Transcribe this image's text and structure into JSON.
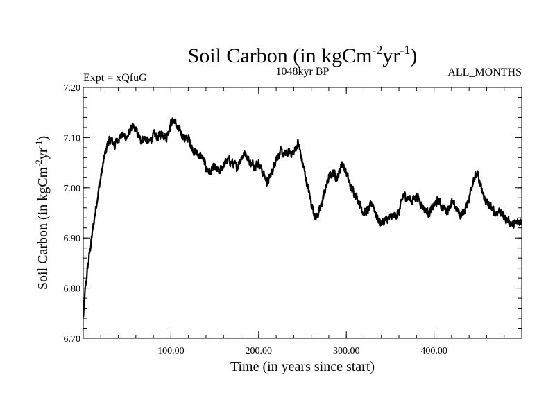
{
  "chart_data": {
    "type": "line",
    "title": {
      "main": "Soil Carbon (in kgCm",
      "exp1": "-2",
      "mid": "yr",
      "exp2": "-1",
      "end": ")"
    },
    "subtitle_left": "Expt = xQfuG",
    "subtitle_center": "1048kyr BP",
    "subtitle_right": "ALL_MONTHS",
    "xlabel": "Time (in years since start)",
    "ylabel": {
      "main": "Soil Carbon (in kgCm",
      "exp1": "-2",
      "mid": "yr",
      "exp2": "-1",
      "end": ")"
    },
    "xlim": [
      0,
      500
    ],
    "ylim": [
      6.7,
      7.2
    ],
    "x_major_ticks": [
      100,
      200,
      300,
      400
    ],
    "x_tick_labels": [
      "100.00",
      "200.00",
      "300.00",
      "400.00"
    ],
    "x_minor_step": 20,
    "y_major_ticks": [
      6.7,
      6.8,
      6.9,
      7.0,
      7.1,
      7.2
    ],
    "y_tick_labels": [
      "6.70",
      "6.80",
      "6.90",
      "7.00",
      "7.10",
      "7.20"
    ],
    "y_minor_step": 0.02,
    "series": [
      {
        "name": "Soil Carbon",
        "color": "#000000",
        "x": [
          0,
          2,
          5,
          8,
          12,
          16,
          20,
          24,
          28,
          32,
          36,
          40,
          45,
          50,
          55,
          60,
          65,
          70,
          75,
          80,
          85,
          90,
          95,
          100,
          104,
          108,
          112,
          116,
          120,
          124,
          128,
          132,
          136,
          140,
          145,
          150,
          155,
          160,
          165,
          170,
          175,
          180,
          185,
          190,
          195,
          200,
          205,
          210,
          215,
          220,
          225,
          230,
          235,
          240,
          245,
          250,
          255,
          260,
          265,
          270,
          275,
          280,
          285,
          290,
          295,
          300,
          305,
          310,
          315,
          320,
          325,
          330,
          335,
          340,
          345,
          350,
          355,
          360,
          365,
          370,
          375,
          380,
          385,
          390,
          395,
          400,
          405,
          410,
          415,
          420,
          425,
          430,
          435,
          440,
          445,
          450,
          455,
          460,
          465,
          470,
          475,
          480,
          485,
          490,
          495,
          500
        ],
        "values": [
          6.74,
          6.79,
          6.84,
          6.88,
          6.93,
          6.98,
          7.02,
          7.06,
          7.09,
          7.095,
          7.085,
          7.1,
          7.105,
          7.1,
          7.12,
          7.115,
          7.095,
          7.1,
          7.09,
          7.105,
          7.1,
          7.11,
          7.1,
          7.13,
          7.135,
          7.115,
          7.11,
          7.095,
          7.1,
          7.08,
          7.07,
          7.065,
          7.06,
          7.04,
          7.03,
          7.04,
          7.03,
          7.045,
          7.055,
          7.05,
          7.04,
          7.06,
          7.07,
          7.05,
          7.045,
          7.05,
          7.03,
          7.01,
          7.03,
          7.06,
          7.07,
          7.065,
          7.07,
          7.07,
          7.09,
          7.05,
          7.01,
          6.97,
          6.94,
          6.955,
          6.99,
          7.02,
          7.03,
          7.02,
          7.05,
          7.03,
          7.0,
          6.99,
          6.97,
          6.95,
          6.955,
          6.97,
          6.94,
          6.93,
          6.935,
          6.94,
          6.945,
          6.95,
          6.985,
          6.98,
          6.975,
          6.985,
          6.97,
          6.955,
          6.95,
          6.965,
          6.975,
          6.96,
          6.955,
          6.97,
          6.96,
          6.945,
          6.955,
          6.98,
          7.02,
          7.025,
          6.99,
          6.97,
          6.96,
          6.95,
          6.955,
          6.94,
          6.935,
          6.925,
          6.93,
          6.935
        ]
      }
    ]
  }
}
